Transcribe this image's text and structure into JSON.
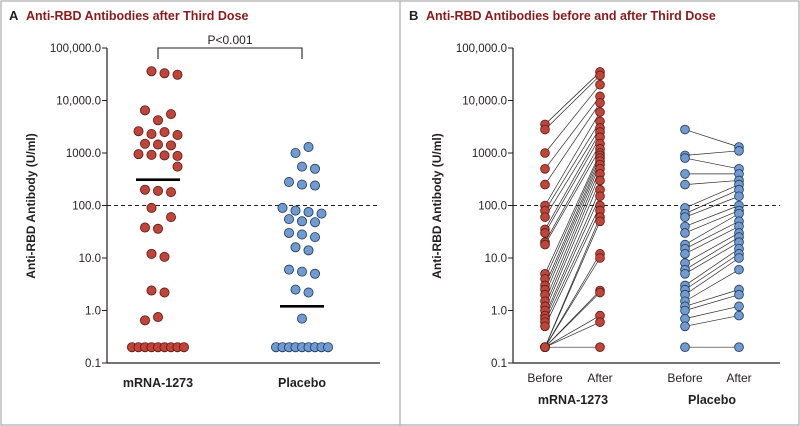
{
  "colors": {
    "panel_title": "#8b1a1a",
    "mrna_fill": "#c0443a",
    "mrna_stroke": "#5a1a12",
    "placebo_fill": "#6f9bd1",
    "placebo_stroke": "#1f3558",
    "text": "#231f20",
    "border": "#9a9a9a"
  },
  "chart_data": [
    {
      "panel": "A",
      "type": "scatter",
      "title": "Anti-RBD Antibodies after Third Dose",
      "ylabel": "Anti-RBD Antibody (U/ml)",
      "yscale": "log",
      "ylim": [
        0.1,
        100000
      ],
      "yticks": [
        0.1,
        1,
        10,
        100,
        1000,
        10000,
        100000
      ],
      "ytick_labels": [
        "0.1",
        "1.0",
        "10.0",
        "100.0",
        "1000.0",
        "10,000.0",
        "100,000.0"
      ],
      "threshold": 100,
      "categories": [
        "mRNA-1273",
        "Placebo"
      ],
      "annotation": "P<0.001",
      "series": [
        {
          "name": "mRNA-1273",
          "median": 310,
          "points": [
            {
              "y": 36000,
              "o": -1
            },
            {
              "y": 33000,
              "o": 1
            },
            {
              "y": 31000,
              "o": 3
            },
            {
              "y": 6500,
              "o": -2
            },
            {
              "y": 5500,
              "o": 2
            },
            {
              "y": 4200,
              "o": 0
            },
            {
              "y": 2600,
              "o": -3
            },
            {
              "y": 2300,
              "o": -1
            },
            {
              "y": 2500,
              "o": 1
            },
            {
              "y": 2200,
              "o": 3
            },
            {
              "y": 1500,
              "o": -2
            },
            {
              "y": 1450,
              "o": 0
            },
            {
              "y": 1400,
              "o": 2
            },
            {
              "y": 950,
              "o": -3
            },
            {
              "y": 920,
              "o": -1
            },
            {
              "y": 900,
              "o": 1
            },
            {
              "y": 880,
              "o": 3
            },
            {
              "y": 550,
              "o": 3
            },
            {
              "y": 200,
              "o": -2
            },
            {
              "y": 190,
              "o": 0
            },
            {
              "y": 180,
              "o": 2
            },
            {
              "y": 90,
              "o": -1
            },
            {
              "y": 60,
              "o": 2
            },
            {
              "y": 38,
              "o": -2
            },
            {
              "y": 36,
              "o": 0
            },
            {
              "y": 12,
              "o": -1
            },
            {
              "y": 10.5,
              "o": 1
            },
            {
              "y": 2.4,
              "o": -1
            },
            {
              "y": 2.2,
              "o": 1
            },
            {
              "y": 0.75,
              "o": 0
            },
            {
              "y": 0.65,
              "o": -2
            },
            {
              "y": 0.2,
              "o": -4
            },
            {
              "y": 0.2,
              "o": -3
            },
            {
              "y": 0.2,
              "o": -2
            },
            {
              "y": 0.2,
              "o": -1
            },
            {
              "y": 0.2,
              "o": 0
            },
            {
              "y": 0.2,
              "o": 1
            },
            {
              "y": 0.2,
              "o": 2
            },
            {
              "y": 0.2,
              "o": 3
            },
            {
              "y": 0.2,
              "o": 4
            }
          ]
        },
        {
          "name": "Placebo",
          "median": 1.2,
          "points": [
            {
              "y": 1300,
              "o": 1
            },
            {
              "y": 1000,
              "o": -1
            },
            {
              "y": 550,
              "o": 0
            },
            {
              "y": 500,
              "o": 2
            },
            {
              "y": 280,
              "o": -2
            },
            {
              "y": 250,
              "o": 0
            },
            {
              "y": 240,
              "o": 2
            },
            {
              "y": 90,
              "o": -3
            },
            {
              "y": 80,
              "o": -1
            },
            {
              "y": 75,
              "o": 1
            },
            {
              "y": 70,
              "o": 3
            },
            {
              "y": 55,
              "o": -2
            },
            {
              "y": 50,
              "o": 0
            },
            {
              "y": 48,
              "o": 2
            },
            {
              "y": 30,
              "o": -2
            },
            {
              "y": 28,
              "o": 0
            },
            {
              "y": 25,
              "o": 2
            },
            {
              "y": 16,
              "o": -1
            },
            {
              "y": 14,
              "o": 1
            },
            {
              "y": 6,
              "o": -2
            },
            {
              "y": 5.5,
              "o": 0
            },
            {
              "y": 5,
              "o": 2
            },
            {
              "y": 2.5,
              "o": -1
            },
            {
              "y": 2.2,
              "o": 1
            },
            {
              "y": 0.7,
              "o": 0
            },
            {
              "y": 0.2,
              "o": -4
            },
            {
              "y": 0.2,
              "o": -3
            },
            {
              "y": 0.2,
              "o": -2
            },
            {
              "y": 0.2,
              "o": -1
            },
            {
              "y": 0.2,
              "o": 0
            },
            {
              "y": 0.2,
              "o": 1
            },
            {
              "y": 0.2,
              "o": 2
            },
            {
              "y": 0.2,
              "o": 3
            },
            {
              "y": 0.2,
              "o": 4
            }
          ]
        }
      ]
    },
    {
      "panel": "B",
      "type": "line",
      "title": "Anti-RBD Antibodies before and after Third Dose",
      "ylabel": "Anti-RBD Antibody (U/ml)",
      "yscale": "log",
      "ylim": [
        0.1,
        100000
      ],
      "yticks": [
        0.1,
        1,
        10,
        100,
        1000,
        10000,
        100000
      ],
      "ytick_labels": [
        "0.1",
        "1.0",
        "10.0",
        "100.0",
        "1000.0",
        "10,000.0",
        "100,000.0"
      ],
      "threshold": 100,
      "x_labels": [
        "Before",
        "After"
      ],
      "groups": [
        {
          "name": "mRNA-1273",
          "pairs": [
            [
              3500,
              35000
            ],
            [
              2800,
              30000
            ],
            [
              1000,
              20000
            ],
            [
              500,
              12000
            ],
            [
              250,
              9000
            ],
            [
              100,
              6000
            ],
            [
              80,
              4000
            ],
            [
              60,
              3000
            ],
            [
              35,
              2500
            ],
            [
              30,
              2000
            ],
            [
              20,
              1500
            ],
            [
              18,
              1200
            ],
            [
              5,
              1000
            ],
            [
              4,
              900
            ],
            [
              3,
              800
            ],
            [
              2.5,
              700
            ],
            [
              2,
              600
            ],
            [
              1.5,
              500
            ],
            [
              1.2,
              400
            ],
            [
              1,
              300
            ],
            [
              0.8,
              200
            ],
            [
              0.7,
              150
            ],
            [
              0.6,
              100
            ],
            [
              0.5,
              80
            ],
            [
              0.2,
              60
            ],
            [
              0.2,
              50
            ],
            [
              0.2,
              12
            ],
            [
              0.2,
              10
            ],
            [
              0.2,
              2.4
            ],
            [
              0.2,
              2.2
            ],
            [
              0.2,
              0.8
            ],
            [
              0.2,
              0.6
            ],
            [
              0.2,
              0.2
            ]
          ]
        },
        {
          "name": "Placebo",
          "pairs": [
            [
              2800,
              1300
            ],
            [
              900,
              1100
            ],
            [
              800,
              500
            ],
            [
              400,
              400
            ],
            [
              250,
              300
            ],
            [
              90,
              250
            ],
            [
              70,
              200
            ],
            [
              60,
              150
            ],
            [
              40,
              100
            ],
            [
              30,
              80
            ],
            [
              18,
              70
            ],
            [
              15,
              50
            ],
            [
              12,
              40
            ],
            [
              8,
              30
            ],
            [
              6,
              25
            ],
            [
              5,
              20
            ],
            [
              3,
              15
            ],
            [
              2.5,
              12
            ],
            [
              2,
              10
            ],
            [
              1.5,
              6
            ],
            [
              1.2,
              2.5
            ],
            [
              1,
              2
            ],
            [
              0.7,
              1.2
            ],
            [
              0.5,
              0.8
            ],
            [
              0.2,
              0.2
            ]
          ]
        }
      ]
    }
  ]
}
